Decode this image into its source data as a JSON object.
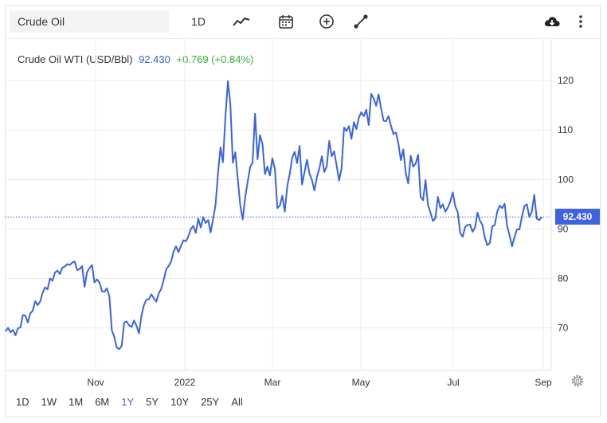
{
  "toolbar": {
    "search_value": "Crude Oil",
    "interval_label": "1D"
  },
  "header": {
    "name": "Crude Oil WTI (USD/Bbl)",
    "price": "92.430",
    "change": "+0.769 (+0.84%)"
  },
  "price_tag": "92.430",
  "ranges": [
    "1D",
    "1W",
    "1M",
    "6M",
    "1Y",
    "5Y",
    "10Y",
    "25Y",
    "All"
  ],
  "active_range": "1Y",
  "colors": {
    "line": "#3a63e4",
    "price_tag": "#3d63e0",
    "change": "#35b235",
    "price": "#3366cc",
    "grid": "#ececec"
  },
  "chart_data": {
    "type": "line",
    "y_ticks": [
      "70",
      "80",
      "90",
      "100",
      "110",
      "120"
    ],
    "x_ticks": [
      "Nov",
      "2022",
      "Mar",
      "May",
      "Jul",
      "Sep"
    ],
    "ylim": [
      61.4,
      128.4
    ],
    "last_value": 92.43,
    "grid": true,
    "series": [
      {
        "values": [
          69.3,
          70,
          69.1,
          69.6,
          68.5,
          69.9,
          70.1,
          72.6,
          72.5,
          71.1,
          72.9,
          73.5,
          75.4,
          74.6,
          75.3,
          77.1,
          78.2,
          77.8,
          80,
          79.5,
          81.2,
          81.6,
          80.9,
          82.2,
          82.4,
          82.9,
          82.7,
          83.2,
          83.4,
          81.7,
          81.9,
          82.5,
          78.3,
          81.3,
          82.1,
          82.7,
          79.2,
          79.8,
          79.2,
          77.4,
          77.3,
          78,
          76.4,
          69.5,
          68.2,
          66,
          65.7,
          66.4,
          71.1,
          71.3,
          70.5,
          70.2,
          71.5,
          70.4,
          68.9,
          72.5,
          74.6,
          75.7,
          75.8,
          76.8,
          76,
          75.3,
          77,
          77.9,
          79.7,
          81.8,
          82.5,
          83.4,
          85.4,
          86.5,
          85.3,
          86.6,
          87.7,
          87.5,
          88.5,
          90,
          90.6,
          89.2,
          92.1,
          90.3,
          92.4,
          91.2,
          91.8,
          89.3,
          92,
          94.9,
          101.3,
          106.5,
          103.5,
          112.7,
          119.9,
          115.2,
          103.4,
          105.5,
          100.1,
          94.8,
          91.9,
          96.4,
          99.5,
          102.5,
          103.5,
          113.3,
          104.1,
          109,
          107.2,
          101.1,
          102.6,
          100.8,
          104.3,
          102.1,
          94.2,
          94.7,
          96.7,
          93.5,
          98.6,
          101.1,
          104.4,
          105.6,
          103.3,
          106.8,
          99,
          101.5,
          104,
          101.2,
          99.9,
          97.8,
          100.5,
          102.2,
          104.7,
          101.5,
          102.7,
          107.8,
          104.7,
          105.7,
          102.8,
          99.8,
          102.3,
          110.5,
          109.8,
          110.8,
          108.2,
          111.6,
          110.2,
          112.5,
          113.6,
          112.8,
          114.1,
          111,
          117.3,
          116.4,
          114.9,
          117.2,
          114.4,
          111.9,
          111.8,
          112.8,
          110.9,
          109.2,
          109.5,
          107.3,
          103.9,
          106.1,
          101.3,
          99.2,
          104.8,
          102.6,
          103.2,
          105,
          96.5,
          95.8,
          99.9,
          94.8,
          93.3,
          91.6,
          92.2,
          96.5,
          94.2,
          95,
          93.5,
          94.3,
          95.5,
          97.4,
          94.6,
          93.4,
          89.2,
          88.4,
          90.4,
          90.8,
          90.9,
          89.4,
          90.3,
          93.3,
          91.7,
          90.8,
          88.2,
          86.7,
          87.2,
          90.5,
          90.8,
          93.5,
          94.7,
          94.2,
          95.1,
          90.6,
          88.7,
          86.5,
          88.4,
          89.9,
          89.9,
          92.5,
          94.6,
          95,
          92.4,
          93.5,
          96.9,
          92.1,
          91.8,
          92.4
        ]
      }
    ]
  }
}
